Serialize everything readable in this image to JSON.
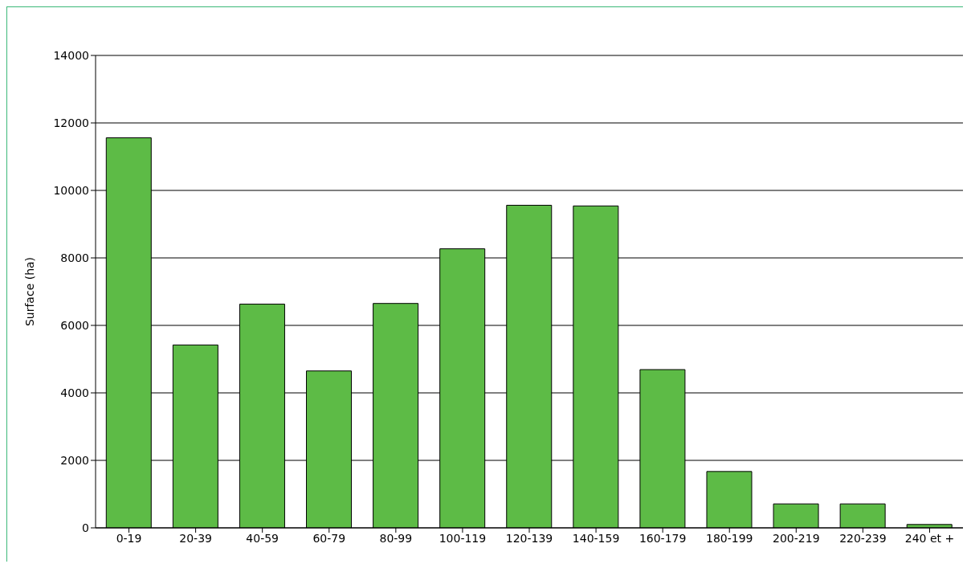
{
  "chart_data": {
    "type": "bar",
    "ylabel": "Surface (ha)",
    "categories": [
      "0-19",
      "20-39",
      "40-59",
      "60-79",
      "80-99",
      "100-119",
      "120-139",
      "140-159",
      "160-179",
      "180-199",
      "200-219",
      "220-239",
      "240 et +"
    ],
    "values": [
      11560,
      5420,
      6630,
      4650,
      6650,
      8270,
      9560,
      9540,
      4690,
      1670,
      710,
      710,
      100
    ],
    "color": "#5dbb46",
    "ylim": [
      0,
      14000
    ],
    "yticks": [
      0,
      2000,
      4000,
      6000,
      8000,
      10000,
      12000,
      14000
    ],
    "grid": "y",
    "legend": false
  }
}
